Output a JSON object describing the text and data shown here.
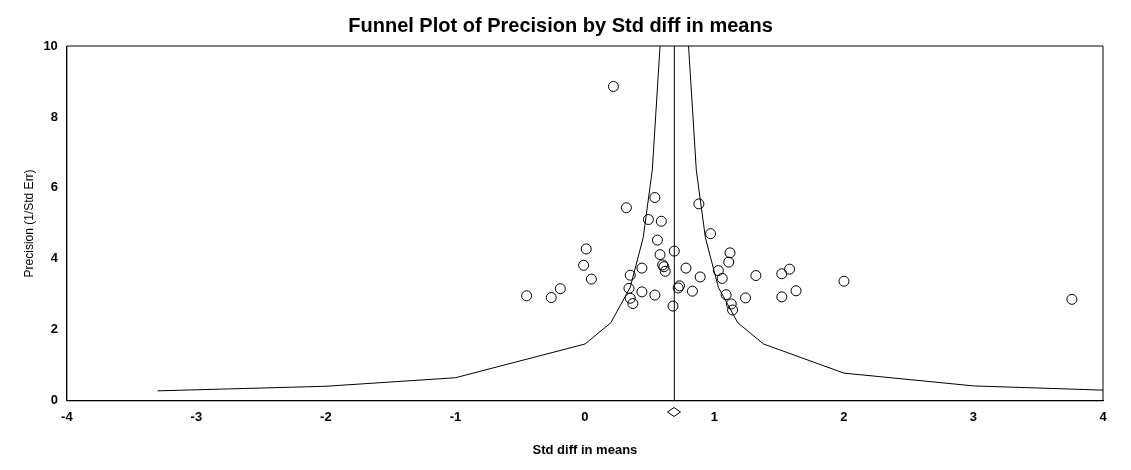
{
  "chart_data": {
    "type": "scatter",
    "title": "Funnel Plot of Precision by Std diff in means",
    "xlabel": "Std diff in means",
    "ylabel": "Precision (1/Std Err)",
    "xlim": [
      -4,
      4
    ],
    "xticks": [
      -4,
      -3,
      -2,
      -1,
      0,
      1,
      2,
      3,
      4
    ],
    "ylim": [
      0,
      10
    ],
    "yticks": [
      0,
      2,
      4,
      6,
      8,
      10
    ],
    "grid": false,
    "legend": false,
    "marker": "circle",
    "series": [
      {
        "type": "scatter",
        "color": "#000000",
        "x": [
          0.22,
          0.54,
          0.32,
          0.88,
          0.49,
          0.59,
          0.97,
          0.56,
          0.01,
          0.69,
          1.12,
          0.58,
          -0.01,
          1.11,
          0.6,
          0.61,
          0.62,
          0.44,
          0.78,
          1.03,
          1.58,
          1.52,
          0.35,
          0.89,
          1.06,
          1.32,
          0.05,
          -0.19,
          -0.45,
          -0.26,
          0.34,
          0.44,
          0.54,
          0.73,
          0.72,
          0.83,
          1.09,
          0.35,
          0.37,
          0.68,
          1.13,
          1.14,
          1.24,
          1.52,
          1.63,
          2.0,
          3.76
        ],
        "values": [
          8.86,
          5.73,
          5.44,
          5.55,
          5.11,
          5.06,
          4.71,
          4.53,
          4.28,
          4.22,
          4.17,
          4.12,
          3.82,
          3.91,
          3.83,
          3.78,
          3.65,
          3.74,
          3.74,
          3.67,
          3.71,
          3.58,
          3.54,
          3.49,
          3.45,
          3.53,
          3.43,
          3.16,
          2.96,
          2.91,
          3.17,
          3.07,
          2.98,
          3.24,
          3.18,
          3.09,
          2.99,
          2.89,
          2.74,
          2.67,
          2.73,
          2.56,
          2.9,
          2.93,
          3.1,
          3.37,
          2.86
        ]
      },
      {
        "type": "line",
        "color": "#000000",
        "marker": "none",
        "x": [
          -3.3,
          -2,
          -1,
          0,
          0.2,
          0.35,
          0.45,
          0.52,
          0.58
        ],
        "values": [
          0.28,
          0.41,
          0.65,
          1.6,
          2.2,
          3.2,
          4.6,
          6.5,
          10
        ]
      },
      {
        "type": "line",
        "color": "#000000",
        "marker": "none",
        "x": [
          0.8,
          0.86,
          0.93,
          1.03,
          1.18,
          1.38,
          2,
          3,
          4
        ],
        "values": [
          10,
          6.5,
          4.6,
          3.2,
          2.2,
          1.6,
          0.78,
          0.42,
          0.3
        ]
      }
    ],
    "ref_lines": [
      {
        "axis": "x",
        "value": 0.69,
        "color": "#000000"
      }
    ]
  }
}
